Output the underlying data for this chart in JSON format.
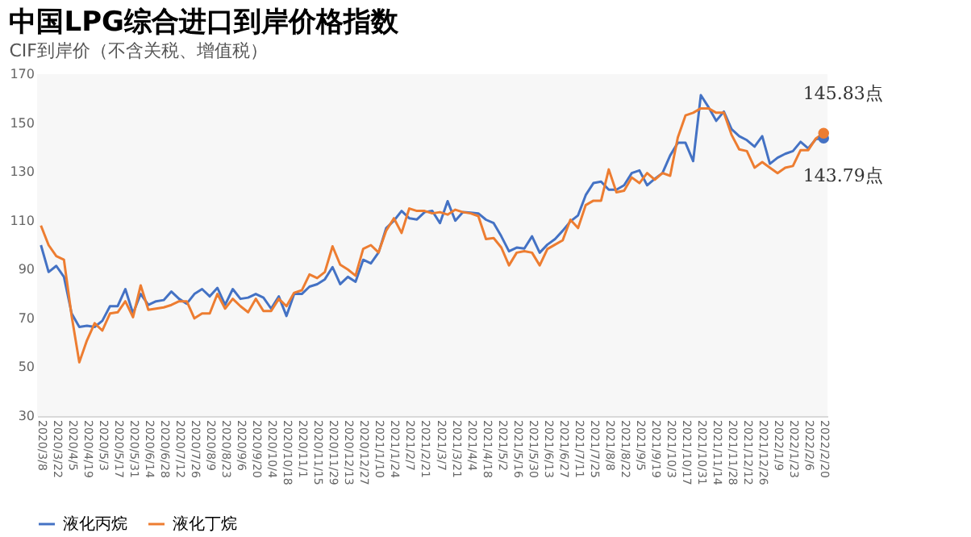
{
  "chart_data": {
    "type": "line",
    "title": "中国LPG综合进口到岸价格指数",
    "subtitle": "CIF到岸价（不含关税、增值税）",
    "categories": [
      "2020/3/8",
      null,
      "2020/3/22",
      null,
      "2020/4/5",
      null,
      "2020/4/19",
      null,
      "2020/5/3",
      null,
      "2020/5/17",
      null,
      "2020/5/31",
      null,
      "2020/6/14",
      null,
      "2020/6/28",
      null,
      "2020/7/12",
      null,
      "2020/7/26",
      null,
      "2020/8/9",
      null,
      "2020/8/23",
      null,
      "2020/9/6",
      null,
      "2020/9/20",
      null,
      "2020/10/4",
      null,
      "2020/10/18",
      null,
      "2020/11/1",
      null,
      "2020/11/15",
      null,
      "2020/11/29",
      null,
      "2020/12/13",
      null,
      "2020/12/27",
      null,
      "2021/1/10",
      null,
      "2021/1/24",
      null,
      "2021/2/7",
      null,
      "2021/2/21",
      null,
      "2021/3/7",
      null,
      "2021/3/21",
      null,
      "2021/4/4",
      null,
      "2021/4/18",
      null,
      "2021/5/2",
      null,
      "2021/5/16",
      null,
      "2021/5/30",
      null,
      "2021/6/13",
      null,
      "2021/6/27",
      null,
      "2021/7/11",
      null,
      "2021/7/25",
      null,
      "2021/8/8",
      null,
      "2021/8/22",
      null,
      "2021/9/5",
      null,
      "2021/9/19",
      null,
      "2021/10/3",
      null,
      "2021/10/17",
      null,
      "2021/10/31",
      null,
      "2021/11/14",
      null,
      "2021/11/28",
      null,
      "2021/12/12",
      null,
      "2021/12/26",
      null,
      "2022/1/9",
      null,
      "2022/1/23",
      null,
      "2022/2/6",
      null,
      "2022/2/20"
    ],
    "series": [
      {
        "name": "液化丙烷",
        "color": "#4472c4",
        "values": [
          100,
          89,
          91.5,
          87,
          72,
          66.5,
          67,
          66.5,
          69,
          75,
          75,
          82,
          72,
          80,
          75.5,
          77,
          77.5,
          81,
          78,
          76,
          80,
          82,
          79,
          82.5,
          75.5,
          82,
          78,
          78.5,
          80,
          78.5,
          74,
          79,
          71,
          80,
          80,
          83,
          84,
          86,
          91,
          84,
          87,
          85,
          94,
          92.5,
          97,
          107,
          110,
          114,
          111,
          110.5,
          113.5,
          114,
          109,
          118,
          110,
          113.5,
          113.3,
          113,
          110.4,
          109,
          103.6,
          97.5,
          99,
          98.6,
          103.6,
          96.9,
          100.2,
          102.5,
          105.9,
          109.7,
          112.2,
          120.5,
          125.4,
          126,
          122.7,
          122.7,
          124.5,
          129.5,
          130.6,
          124.5,
          127.2,
          129.5,
          136.7,
          141.9,
          141.9,
          134.4,
          161.4,
          156.5,
          150.9,
          154.7,
          147.5,
          144.6,
          143,
          140.3,
          144.6,
          133.3,
          135.8,
          137.4,
          138.5,
          142.3,
          139.6,
          143.4,
          143.79
        ],
        "value_labels": [
          null,
          null,
          null,
          null,
          null,
          null,
          null,
          null,
          null,
          null,
          null,
          null,
          null,
          null,
          null,
          null,
          null,
          null,
          null,
          null,
          null,
          null,
          null,
          null,
          null,
          null,
          null,
          null,
          null,
          null,
          null,
          null,
          null,
          null,
          null,
          null,
          null,
          null,
          null,
          null,
          null,
          null,
          null,
          null,
          null,
          null,
          null,
          null,
          null,
          null,
          null,
          null,
          null,
          null,
          null,
          null,
          null,
          null,
          null,
          null,
          null,
          null,
          null,
          null,
          null,
          null,
          null,
          null,
          null,
          null,
          null,
          null,
          null,
          null,
          null,
          null,
          null,
          null,
          null,
          null,
          null,
          null,
          null,
          null,
          null,
          null,
          null,
          null,
          null,
          null,
          null,
          null,
          null,
          null,
          null,
          null,
          null,
          null,
          null,
          null,
          null,
          null,
          "143.79点"
        ]
      },
      {
        "name": "液化丁烷",
        "color": "#ed7d31",
        "values": [
          108,
          100,
          95.5,
          94,
          71,
          52,
          61,
          68,
          65,
          72,
          72.5,
          77,
          70.5,
          83.5,
          73.5,
          74,
          74.5,
          75.5,
          77,
          77,
          70,
          72,
          72,
          80,
          74,
          78,
          75,
          72.5,
          78,
          73,
          73,
          78,
          75,
          80.5,
          81.5,
          88,
          86.5,
          89,
          99.5,
          92,
          90,
          87.5,
          98.5,
          100,
          97,
          106,
          111,
          105,
          115,
          114,
          114,
          113,
          113.5,
          112.5,
          114.5,
          113.5,
          113,
          111.9,
          102.5,
          102.9,
          99,
          91.7,
          96.9,
          97.5,
          96.9,
          91.7,
          98.4,
          100.2,
          102,
          110.4,
          107,
          116.4,
          118.2,
          118.2,
          131,
          121.6,
          122.3,
          127.7,
          125.4,
          129.5,
          126.8,
          129.5,
          128.4,
          144.1,
          153.1,
          154.2,
          156,
          156,
          154.2,
          154.2,
          145.2,
          139.2,
          138.5,
          131.7,
          134,
          131.7,
          129.5,
          131.7,
          132.4,
          138.9,
          138.9,
          143.7,
          145.83
        ],
        "value_labels": [
          null,
          null,
          null,
          null,
          null,
          null,
          null,
          null,
          null,
          null,
          null,
          null,
          null,
          null,
          null,
          null,
          null,
          null,
          null,
          null,
          null,
          null,
          null,
          null,
          null,
          null,
          null,
          null,
          null,
          null,
          null,
          null,
          null,
          null,
          null,
          null,
          null,
          null,
          null,
          null,
          null,
          null,
          null,
          null,
          null,
          null,
          null,
          null,
          null,
          null,
          null,
          null,
          null,
          null,
          null,
          null,
          null,
          null,
          null,
          null,
          null,
          null,
          null,
          null,
          null,
          null,
          null,
          null,
          null,
          null,
          null,
          null,
          null,
          null,
          null,
          null,
          null,
          null,
          null,
          null,
          null,
          null,
          null,
          null,
          null,
          null,
          null,
          null,
          null,
          null,
          null,
          null,
          null,
          null,
          null,
          null,
          null,
          null,
          null,
          null,
          null,
          null,
          "145.83点"
        ]
      }
    ],
    "ylim": [
      30,
      170
    ],
    "yticks": [
      30,
      50,
      70,
      90,
      110,
      130,
      150,
      170
    ],
    "grid": false,
    "legend": "bottom",
    "marker": "none",
    "line_style": "solid"
  }
}
